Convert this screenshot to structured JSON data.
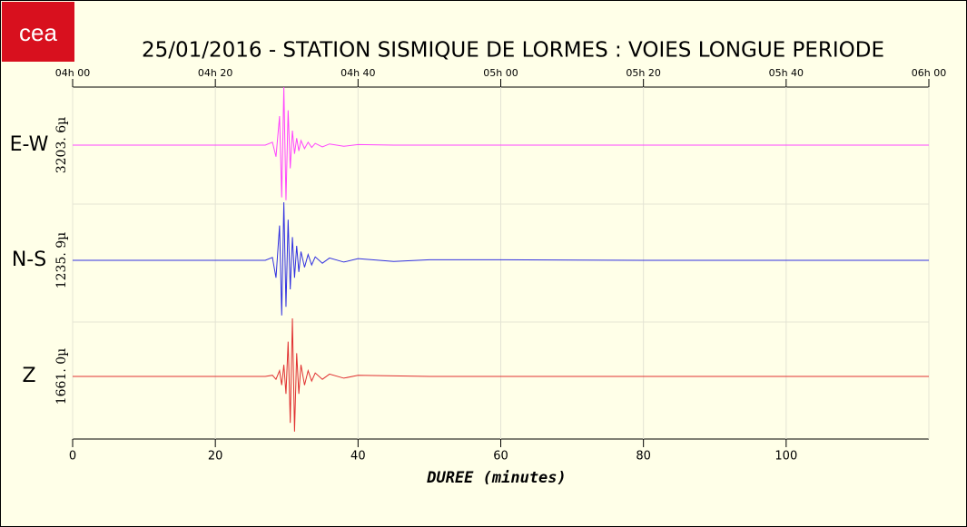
{
  "logo": "cea",
  "chart_data": {
    "type": "seismogram",
    "title": "25/01/2016  -  STATION SISMIQUE DE LORMES : VOIES LONGUE PERIODE",
    "xlabel": "DUREE (minutes)",
    "xlim": [
      0,
      120
    ],
    "xticks": [
      0,
      20,
      40,
      60,
      80,
      100
    ],
    "top_xticks": [
      {
        "value": 0,
        "label": "04h 00"
      },
      {
        "value": 20,
        "label": "04h 20"
      },
      {
        "value": 40,
        "label": "04h 40"
      },
      {
        "value": 60,
        "label": "05h 00"
      },
      {
        "value": 80,
        "label": "05h 20"
      },
      {
        "value": 100,
        "label": "05h 40"
      },
      {
        "value": 120,
        "label": "06h 00"
      }
    ],
    "grid": true,
    "x": [
      0,
      10,
      20,
      27,
      28,
      28.5,
      29,
      29.3,
      29.6,
      29.9,
      30.2,
      30.5,
      30.8,
      31.1,
      31.4,
      31.7,
      32,
      32.5,
      33,
      33.5,
      34,
      35,
      36,
      38,
      40,
      45,
      50,
      60,
      80,
      100,
      120
    ],
    "series": [
      {
        "name": "E-W",
        "amplitude_label": "3203. 6µ",
        "color": "#ff44ff",
        "values": [
          0,
          0,
          0,
          0,
          0.05,
          -0.2,
          0.5,
          -0.9,
          1.0,
          -0.95,
          0.6,
          -0.4,
          0.25,
          -0.15,
          0.12,
          -0.1,
          0.08,
          -0.06,
          0.05,
          -0.04,
          0.03,
          -0.03,
          0.02,
          -0.02,
          0.01,
          0,
          0,
          0,
          0,
          0,
          0
        ]
      },
      {
        "name": "N-S",
        "amplitude_label": "1235. 9µ",
        "color": "#3030e0",
        "values": [
          0,
          0,
          0,
          0,
          0.05,
          -0.3,
          0.6,
          -0.95,
          1.0,
          -0.8,
          0.7,
          -0.5,
          0.4,
          -0.3,
          0.25,
          -0.2,
          0.15,
          -0.12,
          0.1,
          -0.08,
          0.06,
          -0.05,
          0.04,
          -0.03,
          0.03,
          -0.02,
          0.01,
          0.01,
          0,
          0,
          0
        ]
      },
      {
        "name": "Z",
        "amplitude_label": "1661. 0µ",
        "color": "#e03030",
        "values": [
          0,
          0,
          0,
          0,
          0.02,
          -0.05,
          0.1,
          -0.15,
          0.2,
          -0.3,
          0.6,
          -0.8,
          1.0,
          -0.95,
          0.4,
          -0.3,
          0.2,
          -0.15,
          0.1,
          -0.08,
          0.06,
          -0.05,
          0.04,
          -0.03,
          0.02,
          0.01,
          0,
          0,
          0,
          0,
          0
        ]
      }
    ]
  }
}
